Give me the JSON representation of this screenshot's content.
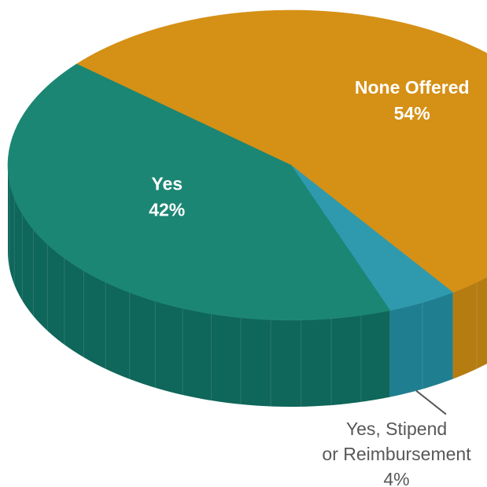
{
  "chart_data": {
    "type": "pie",
    "style": "3d",
    "slices": [
      {
        "label": "None Offered",
        "value": 54,
        "value_label": "54%",
        "color": "#D59016",
        "side_color": "#B57C12",
        "label_position": "inside"
      },
      {
        "label": "Yes, Stipend or Reimbursement",
        "label_lines": [
          "Yes, Stipend",
          "or Reimbursement"
        ],
        "value": 4,
        "value_label": "4%",
        "color": "#2F9AAE",
        "side_color": "#207E91",
        "label_position": "callout"
      },
      {
        "label": "Yes",
        "value": 42,
        "value_label": "42%",
        "color": "#1B8674",
        "side_color": "#0F665A",
        "label_position": "inside"
      }
    ]
  }
}
